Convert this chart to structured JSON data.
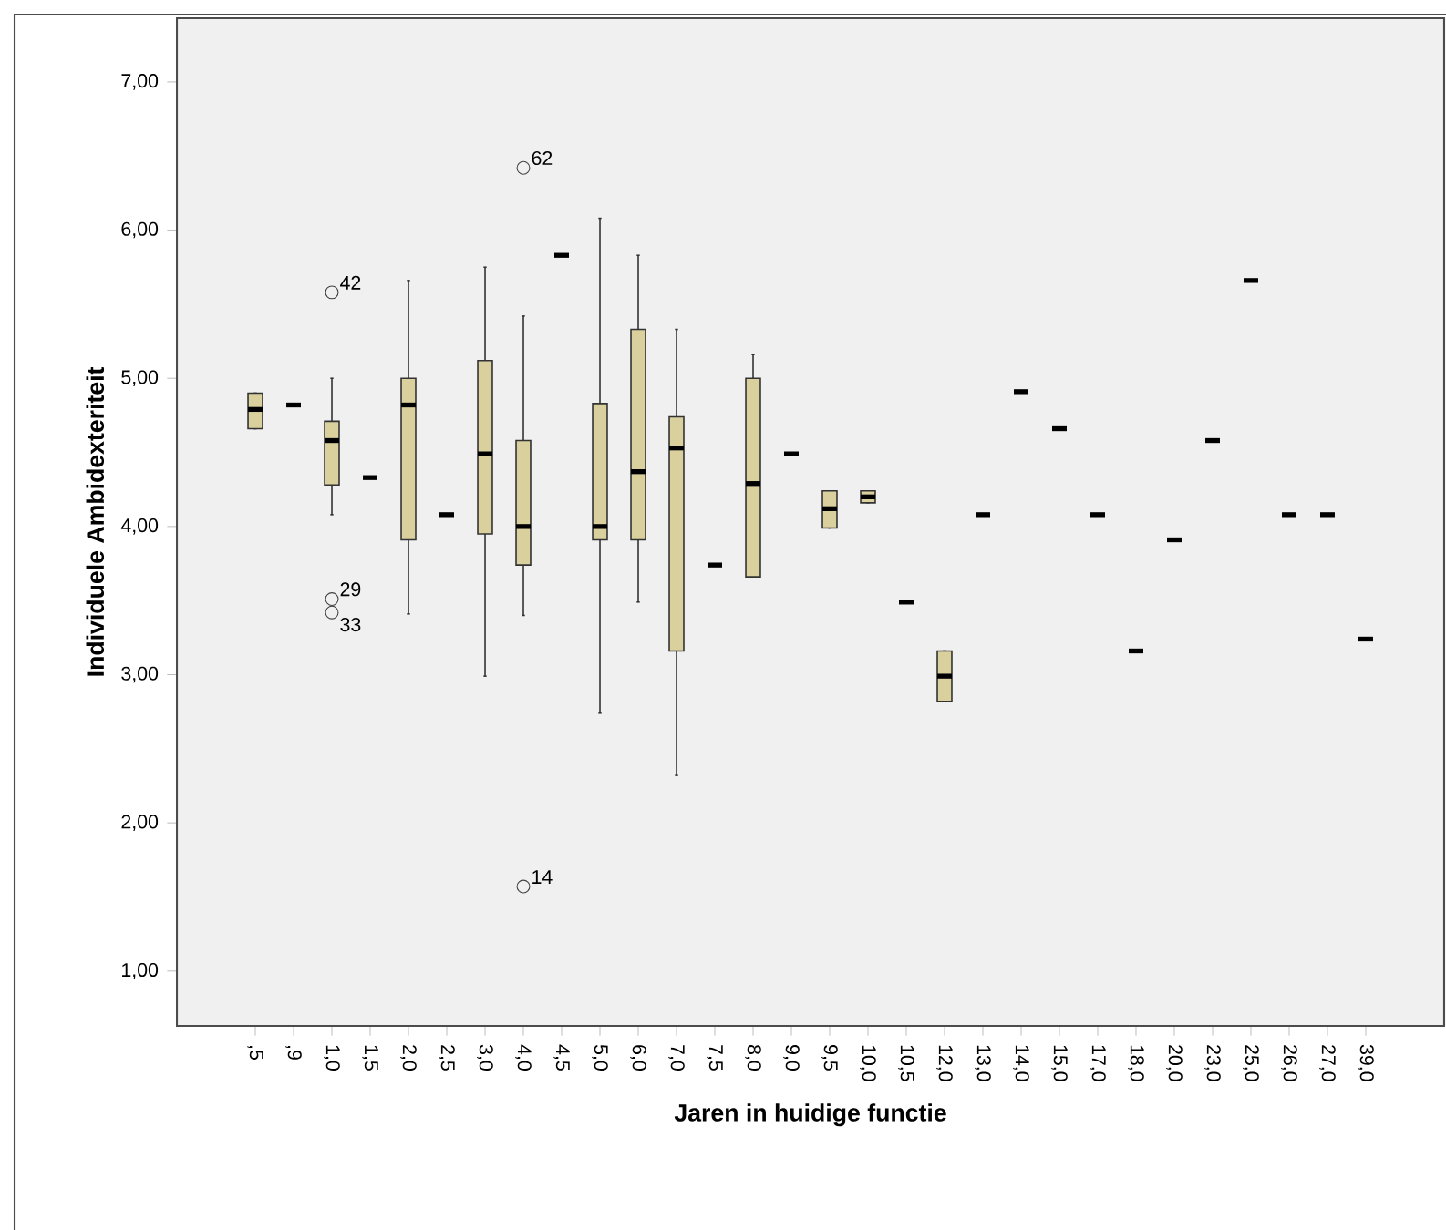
{
  "chart_data": {
    "type": "box",
    "xlabel": "Jaren in huidige functie",
    "ylabel": "Individuele Ambidexteriteit",
    "categories": [
      ",5",
      ",9",
      "1,0",
      "1,5",
      "2,0",
      "2,5",
      "3,0",
      "4,0",
      "4,5",
      "5,0",
      "6,0",
      "7,0",
      "7,5",
      "8,0",
      "9,0",
      "9,5",
      "10,0",
      "10,5",
      "12,0",
      "13,0",
      "14,0",
      "15,0",
      "17,0",
      "18,0",
      "20,0",
      "23,0",
      "25,0",
      "26,0",
      "27,0",
      "39,0"
    ],
    "color": "#d9d09e",
    "boxes": [
      {
        "low": 4.66,
        "q1": 4.66,
        "median": 4.79,
        "q3": 4.9,
        "high": 4.9
      },
      {
        "low": 4.82,
        "q1": 4.82,
        "median": 4.82,
        "q3": 4.82,
        "high": 4.82
      },
      {
        "low": 4.08,
        "q1": 4.28,
        "median": 4.58,
        "q3": 4.71,
        "high": 5.0,
        "outliers": [
          5.58,
          3.51,
          3.42
        ]
      },
      {
        "low": 4.33,
        "q1": 4.33,
        "median": 4.33,
        "q3": 4.33,
        "high": 4.33
      },
      {
        "low": 3.41,
        "q1": 3.91,
        "median": 4.82,
        "q3": 5.0,
        "high": 5.66
      },
      {
        "low": 4.08,
        "q1": 4.08,
        "median": 4.08,
        "q3": 4.08,
        "high": 4.08
      },
      {
        "low": 2.99,
        "q1": 3.95,
        "median": 4.49,
        "q3": 5.12,
        "high": 5.75
      },
      {
        "low": 3.4,
        "q1": 3.74,
        "median": 4.0,
        "q3": 4.58,
        "high": 5.42,
        "outliers": [
          6.42,
          1.57
        ]
      },
      {
        "low": 5.83,
        "q1": 5.83,
        "median": 5.83,
        "q3": 5.83,
        "high": 5.83
      },
      {
        "low": 2.74,
        "q1": 3.91,
        "median": 4.0,
        "q3": 4.83,
        "high": 6.08
      },
      {
        "low": 3.49,
        "q1": 3.91,
        "median": 4.37,
        "q3": 5.33,
        "high": 5.83
      },
      {
        "low": 2.32,
        "q1": 3.16,
        "median": 4.53,
        "q3": 4.74,
        "high": 5.33
      },
      {
        "low": 3.74,
        "q1": 3.74,
        "median": 3.74,
        "q3": 3.74,
        "high": 3.74
      },
      {
        "low": 3.66,
        "q1": 3.66,
        "median": 4.29,
        "q3": 5.0,
        "high": 5.16
      },
      {
        "low": 4.49,
        "q1": 4.49,
        "median": 4.49,
        "q3": 4.49,
        "high": 4.49
      },
      {
        "low": 3.99,
        "q1": 3.99,
        "median": 4.12,
        "q3": 4.24,
        "high": 4.24
      },
      {
        "low": 4.16,
        "q1": 4.16,
        "median": 4.2,
        "q3": 4.24,
        "high": 4.24
      },
      {
        "low": 3.49,
        "q1": 3.49,
        "median": 3.49,
        "q3": 3.49,
        "high": 3.49
      },
      {
        "low": 2.82,
        "q1": 2.82,
        "median": 2.99,
        "q3": 3.16,
        "high": 3.16
      },
      {
        "low": 4.08,
        "q1": 4.08,
        "median": 4.08,
        "q3": 4.08,
        "high": 4.08
      },
      {
        "low": 4.91,
        "q1": 4.91,
        "median": 4.91,
        "q3": 4.91,
        "high": 4.91
      },
      {
        "low": 4.66,
        "q1": 4.66,
        "median": 4.66,
        "q3": 4.66,
        "high": 4.66
      },
      {
        "low": 4.08,
        "q1": 4.08,
        "median": 4.08,
        "q3": 4.08,
        "high": 4.08
      },
      {
        "low": 3.16,
        "q1": 3.16,
        "median": 3.16,
        "q3": 3.16,
        "high": 3.16
      },
      {
        "low": 3.91,
        "q1": 3.91,
        "median": 3.91,
        "q3": 3.91,
        "high": 3.91
      },
      {
        "low": 4.58,
        "q1": 4.58,
        "median": 4.58,
        "q3": 4.58,
        "high": 4.58
      },
      {
        "low": 5.66,
        "q1": 5.66,
        "median": 5.66,
        "q3": 5.66,
        "high": 5.66
      },
      {
        "low": 4.08,
        "q1": 4.08,
        "median": 4.08,
        "q3": 4.08,
        "high": 4.08
      },
      {
        "low": 4.08,
        "q1": 4.08,
        "median": 4.08,
        "q3": 4.08,
        "high": 4.08
      },
      {
        "low": 3.24,
        "q1": 3.24,
        "median": 3.24,
        "q3": 3.24,
        "high": 3.24
      }
    ],
    "ylim": [
      0.63,
      7.43
    ],
    "yticks": [
      {
        "value": 1,
        "label": "1,00"
      },
      {
        "value": 2,
        "label": "2,00"
      },
      {
        "value": 3,
        "label": "3,00"
      },
      {
        "value": 4,
        "label": "4,00"
      },
      {
        "value": 5,
        "label": "5,00"
      },
      {
        "value": 6,
        "label": "6,00"
      },
      {
        "value": 7,
        "label": "7,00"
      }
    ],
    "annotations": [
      "42",
      "29",
      "33",
      "62",
      "14"
    ],
    "grid": false
  }
}
